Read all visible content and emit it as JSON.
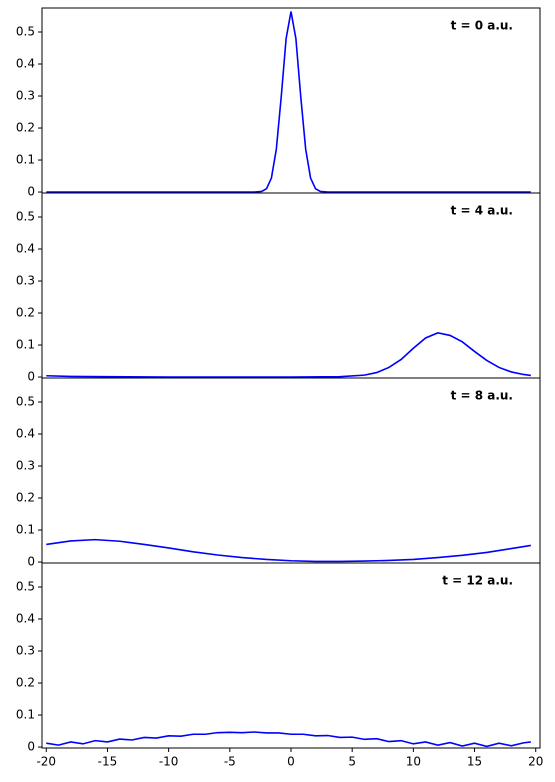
{
  "chart_data": [
    {
      "type": "line",
      "annotation": "t = 0 a.u.",
      "color": "#0000ff",
      "x": [
        -20,
        -3,
        -2.4,
        -2,
        -1.6,
        -1.2,
        -0.8,
        -0.4,
        0,
        0.4,
        0.8,
        1.2,
        1.6,
        2,
        2.4,
        3,
        19.6
      ],
      "values": [
        0,
        0.0001,
        0.0018,
        0.0103,
        0.0437,
        0.1336,
        0.2968,
        0.4795,
        0.5642,
        0.4795,
        0.2968,
        0.1336,
        0.0437,
        0.0103,
        0.0018,
        0.0001,
        0
      ],
      "xlim": [
        -20.35,
        20.35
      ],
      "ylim": [
        -0.003,
        0.575
      ],
      "yticks": [
        0,
        0.1,
        0.2,
        0.3,
        0.4,
        0.5
      ]
    },
    {
      "type": "line",
      "annotation": "t = 4 a.u.",
      "color": "#0000ff",
      "x": [
        -20,
        -18,
        -15,
        -10,
        0,
        4,
        6,
        7,
        8,
        9,
        10,
        11,
        12,
        13,
        14,
        15,
        16,
        17,
        18,
        19,
        19.6
      ],
      "values": [
        0.004,
        0.002,
        0.001,
        0,
        0,
        0.001,
        0.006,
        0.014,
        0.03,
        0.055,
        0.09,
        0.122,
        0.138,
        0.13,
        0.11,
        0.08,
        0.052,
        0.03,
        0.016,
        0.008,
        0.005
      ],
      "xlim": [
        -20.35,
        20.35
      ],
      "ylim": [
        -0.003,
        0.575
      ],
      "yticks": [
        0,
        0.1,
        0.2,
        0.3,
        0.4,
        0.5
      ]
    },
    {
      "type": "line",
      "annotation": "t = 8 a.u.",
      "color": "#0000ff",
      "x": [
        -20,
        -18,
        -16,
        -14,
        -12,
        -10,
        -8,
        -6,
        -4,
        -2,
        0,
        2,
        4,
        6,
        8,
        10,
        12,
        14,
        16,
        18,
        19.6
      ],
      "values": [
        0.055,
        0.066,
        0.07,
        0.065,
        0.055,
        0.044,
        0.032,
        0.022,
        0.014,
        0.008,
        0.004,
        0.002,
        0.002,
        0.003,
        0.005,
        0.008,
        0.014,
        0.021,
        0.03,
        0.042,
        0.052
      ],
      "xlim": [
        -20.35,
        20.35
      ],
      "ylim": [
        -0.003,
        0.575
      ],
      "yticks": [
        0,
        0.1,
        0.2,
        0.3,
        0.4,
        0.5
      ]
    },
    {
      "type": "line",
      "annotation": "t = 12 a.u.",
      "color": "#0000ff",
      "x": [
        -20,
        -19,
        -18,
        -17,
        -16,
        -15,
        -14,
        -13,
        -12,
        -11,
        -10,
        -9,
        -8,
        -7,
        -6,
        -5,
        -4,
        -3,
        -2,
        -1,
        0,
        1,
        2,
        3,
        4,
        5,
        6,
        7,
        8,
        9,
        10,
        11,
        12,
        13,
        14,
        15,
        16,
        17,
        18,
        19,
        19.6
      ],
      "values": [
        0.012,
        0.006,
        0.016,
        0.01,
        0.02,
        0.016,
        0.025,
        0.022,
        0.03,
        0.028,
        0.035,
        0.034,
        0.04,
        0.04,
        0.045,
        0.046,
        0.045,
        0.047,
        0.044,
        0.044,
        0.04,
        0.04,
        0.035,
        0.036,
        0.03,
        0.031,
        0.024,
        0.026,
        0.017,
        0.02,
        0.01,
        0.016,
        0.006,
        0.014,
        0.003,
        0.012,
        0.002,
        0.012,
        0.004,
        0.013,
        0.016
      ],
      "xlim": [
        -20.35,
        20.35
      ],
      "ylim": [
        -0.003,
        0.575
      ],
      "yticks": [
        0,
        0.1,
        0.2,
        0.3,
        0.4,
        0.5
      ],
      "xticks": [
        -20,
        -15,
        -10,
        -5,
        0,
        5,
        10,
        15,
        20
      ]
    }
  ]
}
